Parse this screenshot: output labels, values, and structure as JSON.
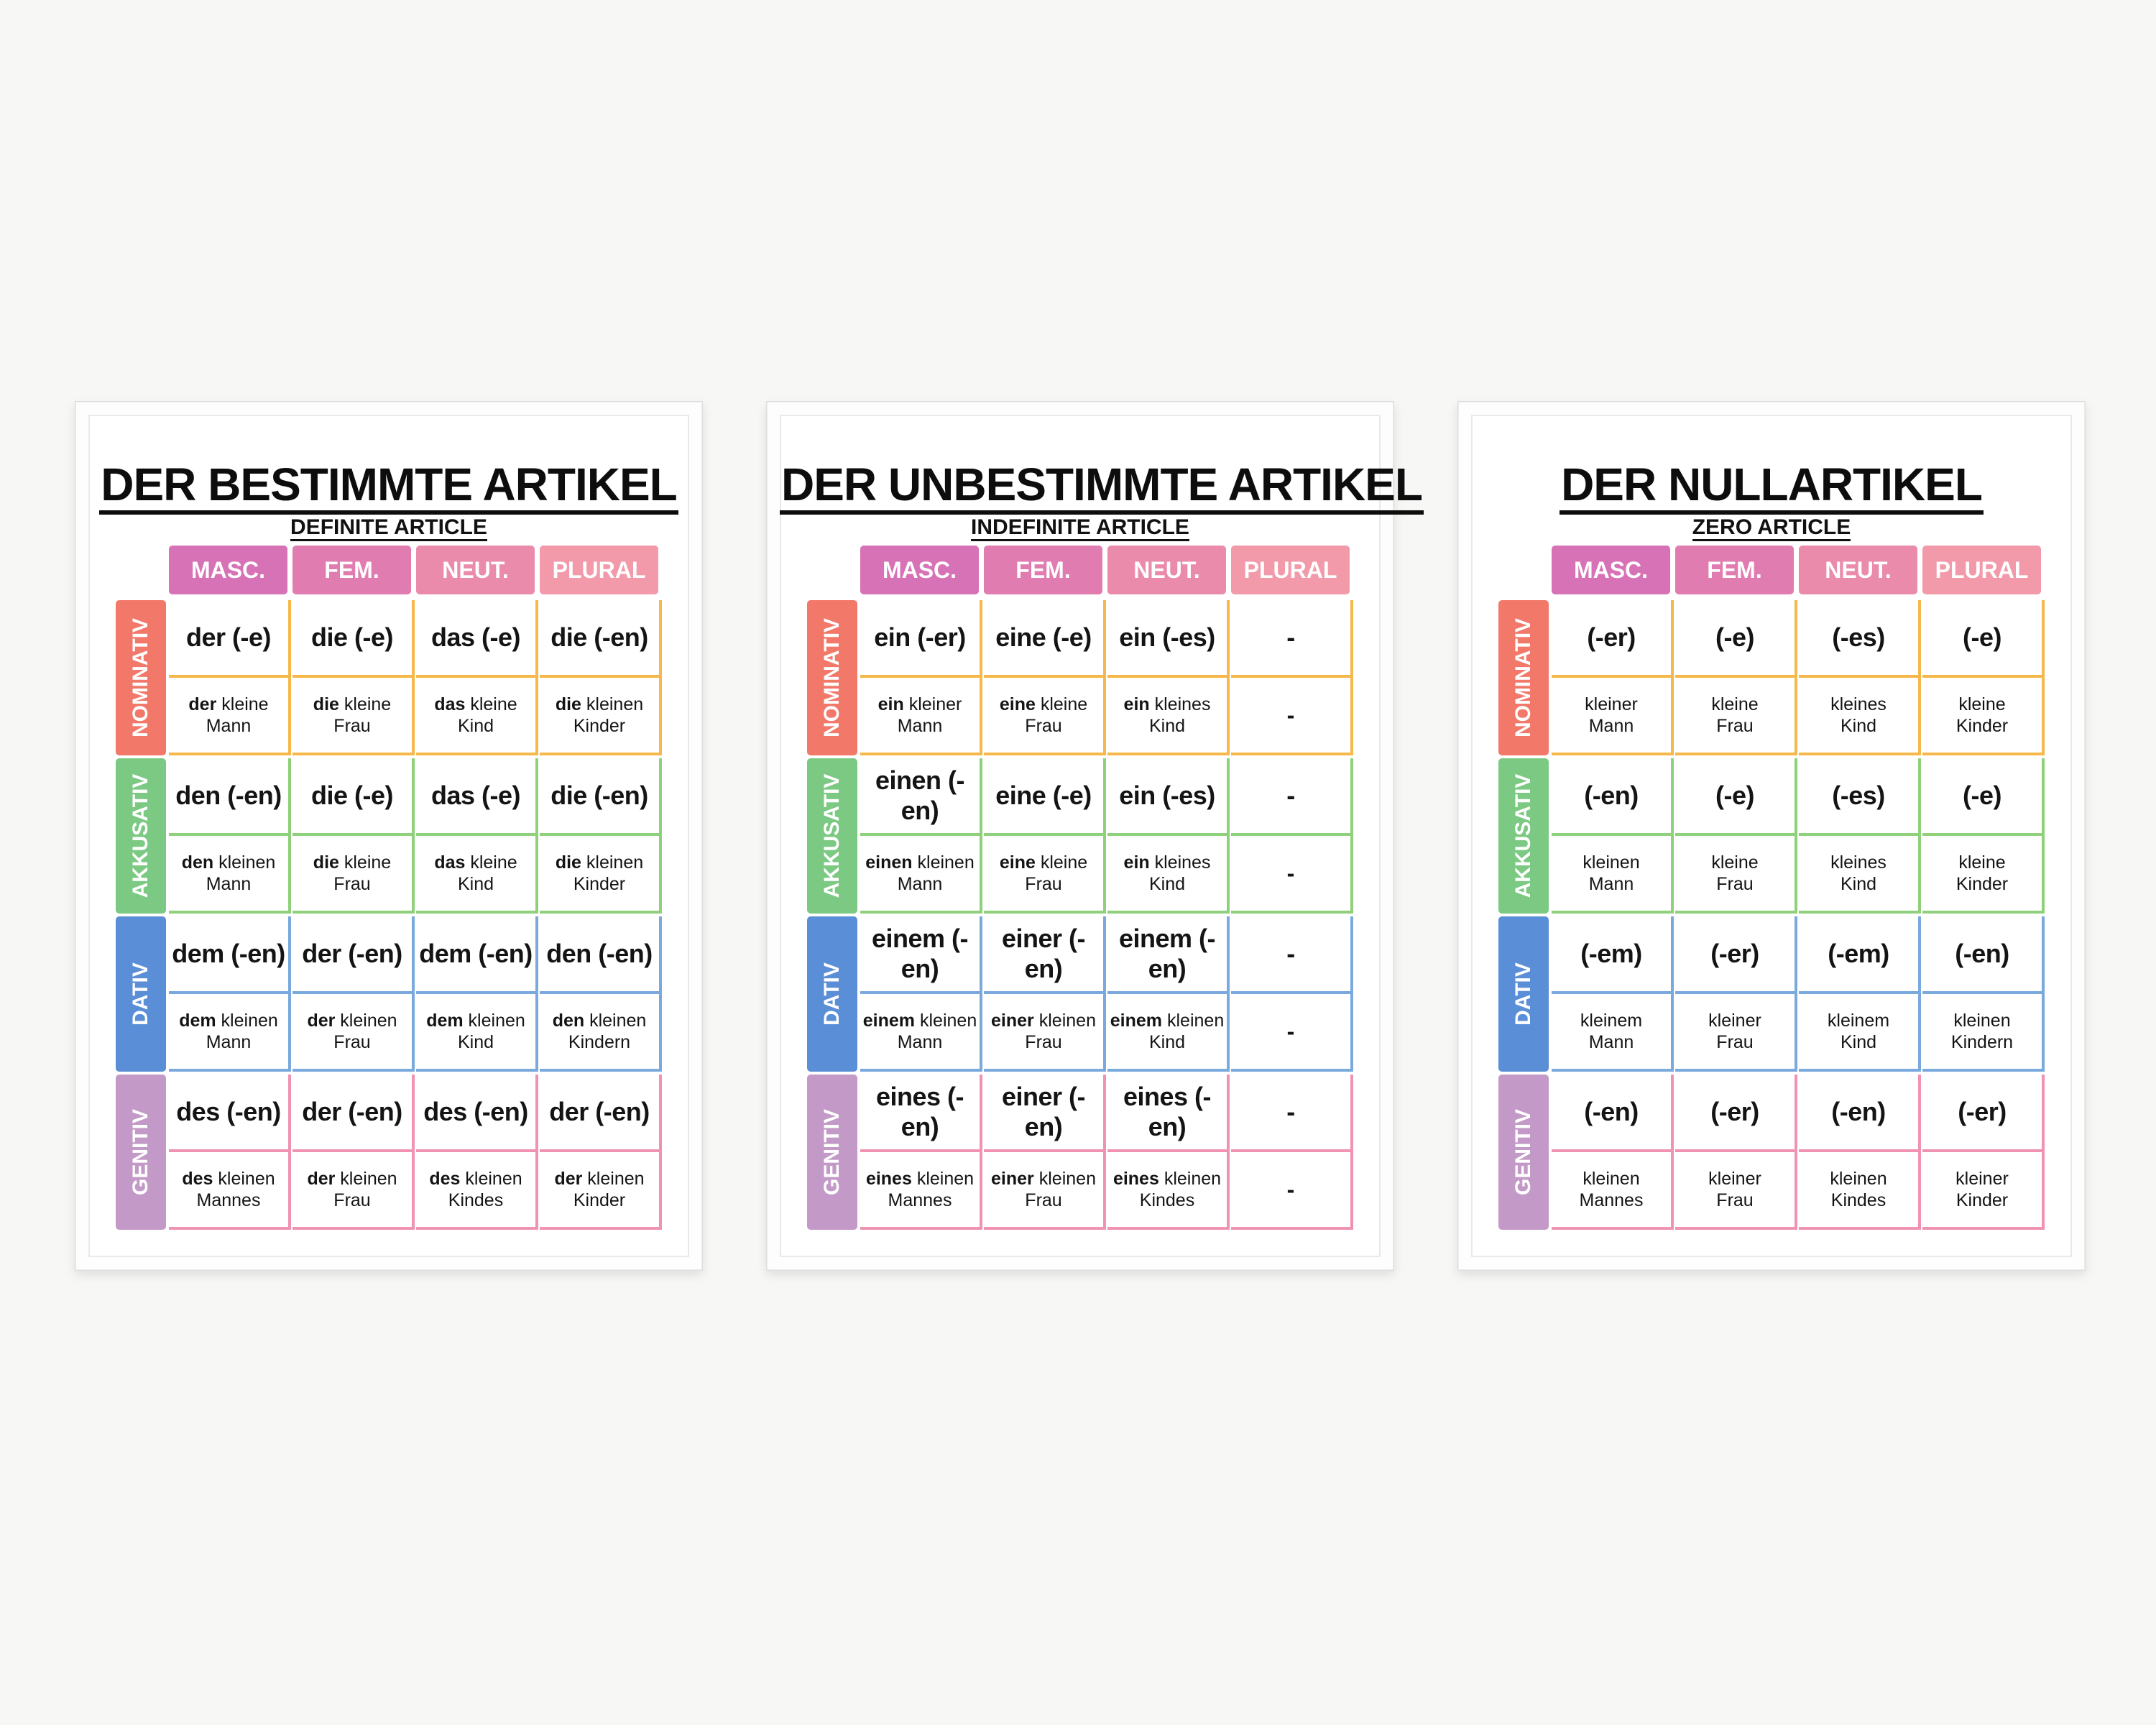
{
  "colors": {
    "nominativ": "#f2796a",
    "akkusativ": "#7cc983",
    "dativ": "#5a8ed6",
    "genitiv": "#c39ac7"
  },
  "posters": [
    {
      "title": "DER BESTIMMTE ARTIKEL",
      "subtitle": "DEFINITE ARTICLE",
      "headers": [
        "MASC.",
        "FEM.",
        "NEUT.",
        "PLURAL"
      ],
      "cases": [
        "NOMINATIV",
        "AKKUSATIV",
        "DATIV",
        "GENITIV"
      ],
      "rows": [
        {
          "forms": [
            "der (-e)",
            "die (-e)",
            "das (-e)",
            "die (-en)"
          ],
          "examples": [
            {
              "bold": "der",
              "rest": " kleine",
              "noun": "Mann"
            },
            {
              "bold": "die",
              "rest": " kleine",
              "noun": "Frau"
            },
            {
              "bold": "das",
              "rest": " kleine",
              "noun": "Kind"
            },
            {
              "bold": "die",
              "rest": " kleinen",
              "noun": "Kinder"
            }
          ]
        },
        {
          "forms": [
            "den (-en)",
            "die (-e)",
            "das (-e)",
            "die (-en)"
          ],
          "examples": [
            {
              "bold": "den",
              "rest": " kleinen",
              "noun": "Mann"
            },
            {
              "bold": "die",
              "rest": " kleine",
              "noun": "Frau"
            },
            {
              "bold": "das",
              "rest": " kleine",
              "noun": "Kind"
            },
            {
              "bold": "die",
              "rest": " kleinen",
              "noun": "Kinder"
            }
          ]
        },
        {
          "forms": [
            "dem (-en)",
            "der (-en)",
            "dem (-en)",
            "den (-en)"
          ],
          "examples": [
            {
              "bold": "dem",
              "rest": " kleinen",
              "noun": "Mann"
            },
            {
              "bold": "der",
              "rest": " kleinen",
              "noun": "Frau"
            },
            {
              "bold": "dem",
              "rest": " kleinen",
              "noun": "Kind"
            },
            {
              "bold": "den",
              "rest": " kleinen",
              "noun": "Kindern"
            }
          ]
        },
        {
          "forms": [
            "des (-en)",
            "der (-en)",
            "des (-en)",
            "der (-en)"
          ],
          "examples": [
            {
              "bold": "des",
              "rest": " kleinen",
              "noun": "Mannes"
            },
            {
              "bold": "der",
              "rest": " kleinen",
              "noun": "Frau"
            },
            {
              "bold": "des",
              "rest": " kleinen",
              "noun": "Kindes"
            },
            {
              "bold": "der",
              "rest": " kleinen",
              "noun": "Kinder"
            }
          ]
        }
      ]
    },
    {
      "title": "DER UNBESTIMMTE ARTIKEL",
      "subtitle": "INDEFINITE ARTICLE",
      "headers": [
        "MASC.",
        "FEM.",
        "NEUT.",
        "PLURAL"
      ],
      "cases": [
        "NOMINATIV",
        "AKKUSATIV",
        "DATIV",
        "GENITIV"
      ],
      "rows": [
        {
          "forms": [
            "ein (-er)",
            "eine (-e)",
            "ein (-es)",
            "-"
          ],
          "examples": [
            {
              "bold": "ein",
              "rest": " kleiner",
              "noun": "Mann"
            },
            {
              "bold": "eine",
              "rest": " kleine",
              "noun": "Frau"
            },
            {
              "bold": "ein",
              "rest": " kleines",
              "noun": "Kind"
            },
            {
              "dash": "-"
            }
          ]
        },
        {
          "forms": [
            "einen (-en)",
            "eine (-e)",
            "ein (-es)",
            "-"
          ],
          "examples": [
            {
              "bold": "einen",
              "rest": " kleinen",
              "noun": "Mann"
            },
            {
              "bold": "eine",
              "rest": " kleine",
              "noun": "Frau"
            },
            {
              "bold": "ein",
              "rest": " kleines",
              "noun": "Kind"
            },
            {
              "dash": "-"
            }
          ]
        },
        {
          "forms": [
            "einem (-en)",
            "einer (-en)",
            "einem (-en)",
            "-"
          ],
          "examples": [
            {
              "bold": "einem",
              "rest": " kleinen",
              "noun": "Mann"
            },
            {
              "bold": "einer",
              "rest": " kleinen",
              "noun": "Frau"
            },
            {
              "bold": "einem",
              "rest": " kleinen",
              "noun": "Kind"
            },
            {
              "dash": "-"
            }
          ]
        },
        {
          "forms": [
            "eines (-en)",
            "einer (-en)",
            "eines (-en)",
            "-"
          ],
          "examples": [
            {
              "bold": "eines",
              "rest": " kleinen",
              "noun": "Mannes"
            },
            {
              "bold": "einer",
              "rest": " kleinen",
              "noun": "Frau"
            },
            {
              "bold": "eines",
              "rest": " kleinen",
              "noun": "Kindes"
            },
            {
              "dash": "-"
            }
          ]
        }
      ]
    },
    {
      "title": "DER NULLARTIKEL",
      "subtitle": "ZERO ARTICLE",
      "headers": [
        "MASC.",
        "FEM.",
        "NEUT.",
        "PLURAL"
      ],
      "cases": [
        "NOMINATIV",
        "AKKUSATIV",
        "DATIV",
        "GENITIV"
      ],
      "rows": [
        {
          "forms": [
            "(-er)",
            "(-e)",
            "(-es)",
            "(-e)"
          ],
          "examples": [
            {
              "adj": "kleiner",
              "noun": "Mann"
            },
            {
              "adj": "kleine",
              "noun": "Frau"
            },
            {
              "adj": "kleines",
              "noun": "Kind"
            },
            {
              "adj": "kleine",
              "noun": "Kinder"
            }
          ]
        },
        {
          "forms": [
            "(-en)",
            "(-e)",
            "(-es)",
            "(-e)"
          ],
          "examples": [
            {
              "adj": "kleinen",
              "noun": "Mann"
            },
            {
              "adj": "kleine",
              "noun": "Frau"
            },
            {
              "adj": "kleines",
              "noun": "Kind"
            },
            {
              "adj": "kleine",
              "noun": "Kinder"
            }
          ]
        },
        {
          "forms": [
            "(-em)",
            "(-er)",
            "(-em)",
            "(-en)"
          ],
          "examples": [
            {
              "adj": "kleinem",
              "noun": "Mann"
            },
            {
              "adj": "kleiner",
              "noun": "Frau"
            },
            {
              "adj": "kleinem",
              "noun": "Kind"
            },
            {
              "adj": "kleinen",
              "noun": "Kindern"
            }
          ]
        },
        {
          "forms": [
            "(-en)",
            "(-er)",
            "(-en)",
            "(-er)"
          ],
          "examples": [
            {
              "adj": "kleinen",
              "noun": "Mannes"
            },
            {
              "adj": "kleiner",
              "noun": "Frau"
            },
            {
              "adj": "kleinen",
              "noun": "Kindes"
            },
            {
              "adj": "kleiner",
              "noun": "Kinder"
            }
          ]
        }
      ]
    }
  ]
}
